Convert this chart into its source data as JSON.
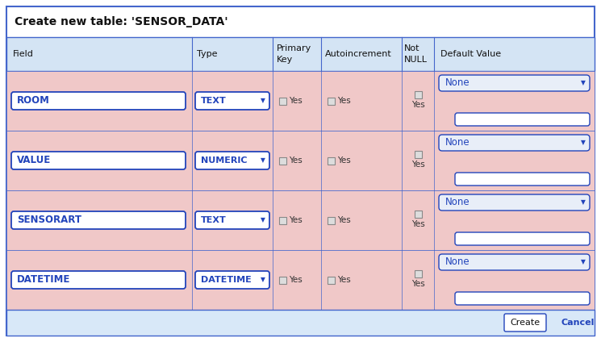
{
  "title": "Create new table: 'SENSOR_DATA'",
  "title_fontsize": 10,
  "bg_color": "#ffffff",
  "outer_border_color": "#4466cc",
  "header_bg": "#d4e4f4",
  "header_border": "#4466cc",
  "row_bg": "#f0c8c8",
  "row_alt_bg": "#eec0c0",
  "input_bg": "#ffffff",
  "input_bg_none": "#e8eef8",
  "input_border": "#2244bb",
  "input_text_color": "#2244bb",
  "header_text_color": "#111111",
  "footer_bg": "#d8e8f8",
  "rows": [
    {
      "field": "ROOM",
      "type": "TEXT"
    },
    {
      "field": "VALUE",
      "type": "NUMERIC"
    },
    {
      "field": "SENSORART",
      "type": "TEXT"
    },
    {
      "field": "DATETIME",
      "type": "DATETIME"
    }
  ],
  "button_texts": [
    "Create",
    "Cancel"
  ],
  "dropdown_arrow": "▼",
  "fig_w": 7.45,
  "fig_h": 4.24,
  "dpi": 100
}
